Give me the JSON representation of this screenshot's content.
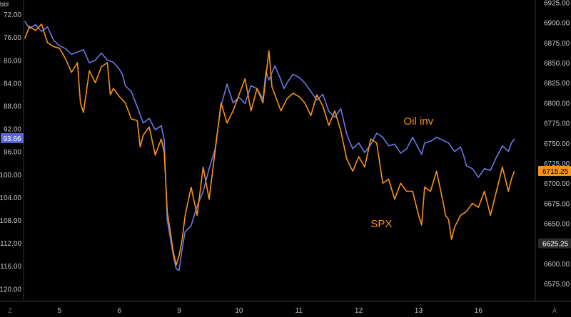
{
  "chart_data": {
    "type": "line",
    "title": "",
    "x_ticks": [
      {
        "label": "5",
        "x": 5
      },
      {
        "label": "6",
        "x": 6
      },
      {
        "label": "9",
        "x": 7
      },
      {
        "label": "10",
        "x": 8
      },
      {
        "label": "11",
        "x": 9
      },
      {
        "label": "12",
        "x": 10
      },
      {
        "label": "13",
        "x": 11
      },
      {
        "label": "16",
        "x": 12
      }
    ],
    "xlim": [
      4.4,
      12.95
    ],
    "left_axis": {
      "unit_label": "bbl",
      "reversed": true,
      "ylim": [
        69.5,
        122.2
      ],
      "ticks": [
        "72.00",
        "76.00",
        "80.00",
        "84.00",
        "88.00",
        "92.00",
        "96.00",
        "100.00",
        "104.00",
        "108.00",
        "112.00",
        "116.00",
        "120.00"
      ],
      "tick_values": [
        72,
        76,
        80,
        84,
        88,
        92,
        96,
        100,
        104,
        108,
        112,
        116,
        120
      ],
      "current_value": "93.66",
      "current_color": "#5b67d6"
    },
    "right_axis": {
      "ylim": [
        6553,
        6928
      ],
      "ticks": [
        "6925.00",
        "6900.00",
        "6875.00",
        "6850.00",
        "6825.00",
        "6800.00",
        "6775.00",
        "6750.00",
        "6725.00",
        "6700.00",
        "6675.00",
        "6650.00",
        "6625.00",
        "6600.00",
        "6575.00"
      ],
      "tick_values": [
        6925,
        6900,
        6875,
        6850,
        6825,
        6800,
        6775,
        6750,
        6725,
        6700,
        6675,
        6650,
        6625,
        6600,
        6575
      ],
      "current_value": "6715.25",
      "current_color": "#f7931a",
      "marker_value": "6625.25"
    },
    "corner_labels": {
      "left": "Z",
      "right": "A"
    },
    "series": [
      {
        "name": "Oil inv",
        "axis": "left",
        "color": "#6d78e8",
        "points": [
          [
            4.42,
            73.2
          ],
          [
            4.5,
            74.5
          ],
          [
            4.6,
            73.8
          ],
          [
            4.7,
            75.0
          ],
          [
            4.8,
            74.2
          ],
          [
            4.9,
            76.5
          ],
          [
            5.0,
            77.5
          ],
          [
            5.1,
            78.0
          ],
          [
            5.2,
            79.0
          ],
          [
            5.3,
            78.6
          ],
          [
            5.4,
            78.2
          ],
          [
            5.5,
            80.5
          ],
          [
            5.6,
            80.0
          ],
          [
            5.7,
            78.8
          ],
          [
            5.8,
            80.0
          ],
          [
            5.9,
            80.4
          ],
          [
            6.0,
            81.6
          ],
          [
            6.05,
            82.5
          ],
          [
            6.1,
            84.5
          ],
          [
            6.2,
            85.5
          ],
          [
            6.3,
            88.2
          ],
          [
            6.4,
            91.0
          ],
          [
            6.5,
            90.2
          ],
          [
            6.6,
            92.2
          ],
          [
            6.7,
            91.5
          ],
          [
            6.75,
            94.0
          ],
          [
            6.8,
            108.0
          ],
          [
            6.85,
            111.0
          ],
          [
            6.9,
            114.0
          ],
          [
            6.95,
            116.5
          ],
          [
            7.0,
            116.8
          ],
          [
            7.05,
            113.0
          ],
          [
            7.1,
            110.0
          ],
          [
            7.2,
            109.0
          ],
          [
            7.3,
            105.5
          ],
          [
            7.4,
            103.0
          ],
          [
            7.5,
            99.0
          ],
          [
            7.6,
            95.5
          ],
          [
            7.7,
            88.0
          ],
          [
            7.8,
            84.2
          ],
          [
            7.9,
            87.5
          ],
          [
            8.0,
            86.5
          ],
          [
            8.1,
            87.6
          ],
          [
            8.2,
            84.5
          ],
          [
            8.3,
            85.0
          ],
          [
            8.4,
            86.8
          ],
          [
            8.45,
            82.0
          ],
          [
            8.5,
            83.5
          ],
          [
            8.6,
            81.0
          ],
          [
            8.7,
            83.5
          ],
          [
            8.75,
            85.0
          ],
          [
            8.8,
            84.0
          ],
          [
            8.9,
            82.5
          ],
          [
            9.0,
            83.0
          ],
          [
            9.1,
            84.0
          ],
          [
            9.2,
            85.5
          ],
          [
            9.3,
            87.0
          ],
          [
            9.4,
            86.0
          ],
          [
            9.5,
            89.0
          ],
          [
            9.6,
            90.0
          ],
          [
            9.7,
            88.5
          ],
          [
            9.8,
            93.0
          ],
          [
            9.9,
            95.5
          ],
          [
            10.0,
            94.5
          ],
          [
            10.1,
            96.2
          ],
          [
            10.2,
            94.8
          ],
          [
            10.3,
            92.8
          ],
          [
            10.4,
            93.5
          ],
          [
            10.5,
            95.0
          ],
          [
            10.6,
            94.7
          ],
          [
            10.7,
            96.3
          ],
          [
            10.8,
            95.5
          ],
          [
            10.9,
            93.5
          ],
          [
            11.0,
            95.5
          ],
          [
            11.05,
            96.5
          ],
          [
            11.1,
            94.5
          ],
          [
            11.2,
            94.2
          ],
          [
            11.3,
            93.5
          ],
          [
            11.4,
            94.0
          ],
          [
            11.5,
            94.5
          ],
          [
            11.6,
            96.0
          ],
          [
            11.7,
            95.2
          ],
          [
            11.75,
            96.6
          ],
          [
            11.8,
            98.5
          ],
          [
            11.9,
            99.0
          ],
          [
            12.0,
            100.5
          ],
          [
            12.1,
            99.0
          ],
          [
            12.2,
            99.3
          ],
          [
            12.3,
            97.0
          ],
          [
            12.4,
            95.0
          ],
          [
            12.5,
            96.0
          ],
          [
            12.55,
            94.5
          ],
          [
            12.6,
            93.8
          ]
        ]
      },
      {
        "name": "SPX",
        "axis": "right",
        "color": "#f7931a",
        "points": [
          [
            4.42,
            6880
          ],
          [
            4.5,
            6895
          ],
          [
            4.6,
            6890
          ],
          [
            4.7,
            6898
          ],
          [
            4.8,
            6875
          ],
          [
            4.9,
            6870
          ],
          [
            5.0,
            6868
          ],
          [
            5.1,
            6855
          ],
          [
            5.2,
            6838
          ],
          [
            5.3,
            6850
          ],
          [
            5.35,
            6800
          ],
          [
            5.4,
            6788
          ],
          [
            5.5,
            6840
          ],
          [
            5.6,
            6825
          ],
          [
            5.7,
            6845
          ],
          [
            5.8,
            6850
          ],
          [
            5.85,
            6810
          ],
          [
            5.9,
            6818
          ],
          [
            6.0,
            6808
          ],
          [
            6.1,
            6800
          ],
          [
            6.2,
            6780
          ],
          [
            6.3,
            6778
          ],
          [
            6.35,
            6745
          ],
          [
            6.4,
            6760
          ],
          [
            6.5,
            6770
          ],
          [
            6.6,
            6735
          ],
          [
            6.7,
            6755
          ],
          [
            6.75,
            6738
          ],
          [
            6.8,
            6665
          ],
          [
            6.85,
            6640
          ],
          [
            6.9,
            6615
          ],
          [
            6.95,
            6598
          ],
          [
            7.0,
            6610
          ],
          [
            7.05,
            6630
          ],
          [
            7.1,
            6660
          ],
          [
            7.2,
            6695
          ],
          [
            7.3,
            6660
          ],
          [
            7.4,
            6720
          ],
          [
            7.5,
            6680
          ],
          [
            7.6,
            6740
          ],
          [
            7.7,
            6800
          ],
          [
            7.8,
            6775
          ],
          [
            7.9,
            6790
          ],
          [
            8.0,
            6810
          ],
          [
            8.1,
            6830
          ],
          [
            8.2,
            6790
          ],
          [
            8.3,
            6818
          ],
          [
            8.4,
            6800
          ],
          [
            8.5,
            6865
          ],
          [
            8.55,
            6820
          ],
          [
            8.6,
            6810
          ],
          [
            8.7,
            6790
          ],
          [
            8.8,
            6805
          ],
          [
            8.9,
            6812
          ],
          [
            9.0,
            6808
          ],
          [
            9.1,
            6800
          ],
          [
            9.2,
            6784
          ],
          [
            9.3,
            6810
          ],
          [
            9.4,
            6796
          ],
          [
            9.5,
            6772
          ],
          [
            9.6,
            6790
          ],
          [
            9.7,
            6765
          ],
          [
            9.8,
            6730
          ],
          [
            9.9,
            6715
          ],
          [
            10.0,
            6733
          ],
          [
            10.1,
            6720
          ],
          [
            10.2,
            6755
          ],
          [
            10.3,
            6750
          ],
          [
            10.4,
            6700
          ],
          [
            10.5,
            6705
          ],
          [
            10.6,
            6680
          ],
          [
            10.7,
            6700
          ],
          [
            10.8,
            6690
          ],
          [
            10.9,
            6690
          ],
          [
            11.0,
            6660
          ],
          [
            11.05,
            6648
          ],
          [
            11.1,
            6695
          ],
          [
            11.2,
            6690
          ],
          [
            11.3,
            6715
          ],
          [
            11.4,
            6680
          ],
          [
            11.45,
            6660
          ],
          [
            11.5,
            6655
          ],
          [
            11.55,
            6630
          ],
          [
            11.6,
            6645
          ],
          [
            11.7,
            6660
          ],
          [
            11.8,
            6665
          ],
          [
            11.9,
            6675
          ],
          [
            12.0,
            6670
          ],
          [
            12.1,
            6690
          ],
          [
            12.2,
            6660
          ],
          [
            12.3,
            6690
          ],
          [
            12.4,
            6720
          ],
          [
            12.5,
            6690
          ],
          [
            12.55,
            6705
          ],
          [
            12.6,
            6715
          ]
        ]
      }
    ],
    "annotations": [
      {
        "text": "Oil inv",
        "color": "#f7931a",
        "x": 10.75,
        "axis": "right",
        "y": 6773
      },
      {
        "text": "SPX",
        "color": "#f7931a",
        "x": 10.2,
        "axis": "right",
        "y": 6645
      }
    ]
  }
}
